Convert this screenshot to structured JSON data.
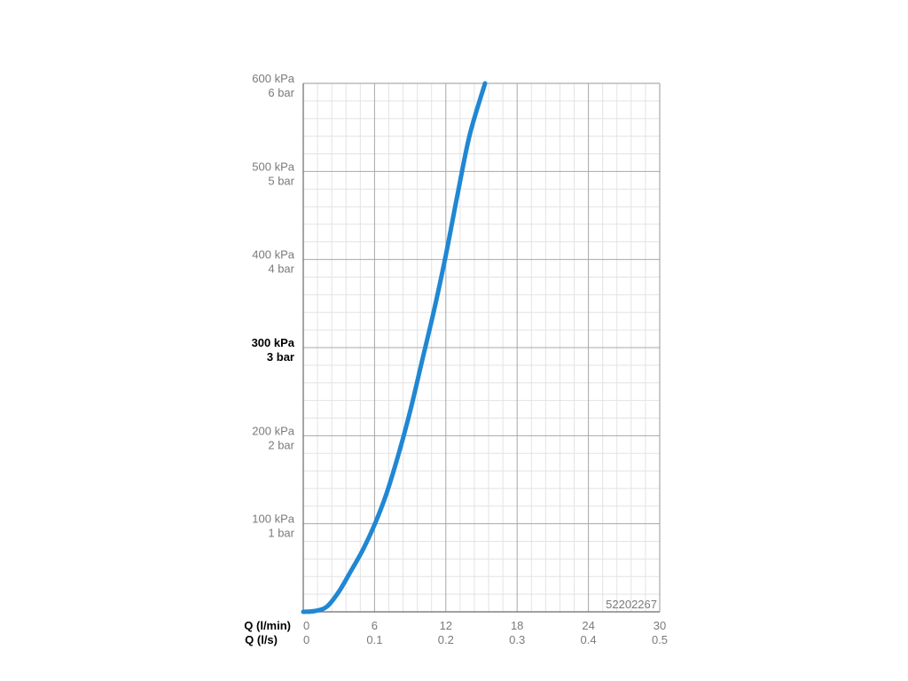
{
  "chart_data": {
    "type": "line",
    "title": "",
    "product_code": "52202267",
    "x_axes": [
      {
        "label": "Q (l/min)",
        "ticks": [
          "0",
          "6",
          "12",
          "18",
          "24",
          "30"
        ]
      },
      {
        "label": "Q (l/s)",
        "ticks": [
          "0",
          "0.1",
          "0.2",
          "0.3",
          "0.4",
          "0.5"
        ]
      }
    ],
    "y_ticks": [
      {
        "value": 100,
        "kpa": "100 kPa",
        "bar": "1 bar",
        "emphasis": false
      },
      {
        "value": 200,
        "kpa": "200 kPa",
        "bar": "2 bar",
        "emphasis": false
      },
      {
        "value": 300,
        "kpa": "300 kPa",
        "bar": "3 bar",
        "emphasis": true
      },
      {
        "value": 400,
        "kpa": "400 kPa",
        "bar": "4 bar",
        "emphasis": false
      },
      {
        "value": 500,
        "kpa": "500 kPa",
        "bar": "5 bar",
        "emphasis": false
      },
      {
        "value": 600,
        "kpa": "600 kPa",
        "bar": "6 bar",
        "emphasis": false
      }
    ],
    "xlim": [
      0,
      30
    ],
    "ylim": [
      0,
      600
    ],
    "grid": true,
    "series": [
      {
        "color": "#2087d3",
        "x": [
          0,
          1,
          2,
          3,
          4,
          5,
          6,
          7,
          8,
          9,
          10,
          11,
          12,
          13,
          14,
          15.3
        ],
        "y": [
          0,
          1,
          6,
          23,
          46,
          70,
          99,
          134,
          178,
          228,
          285,
          342,
          405,
          475,
          541,
          600
        ]
      }
    ]
  }
}
